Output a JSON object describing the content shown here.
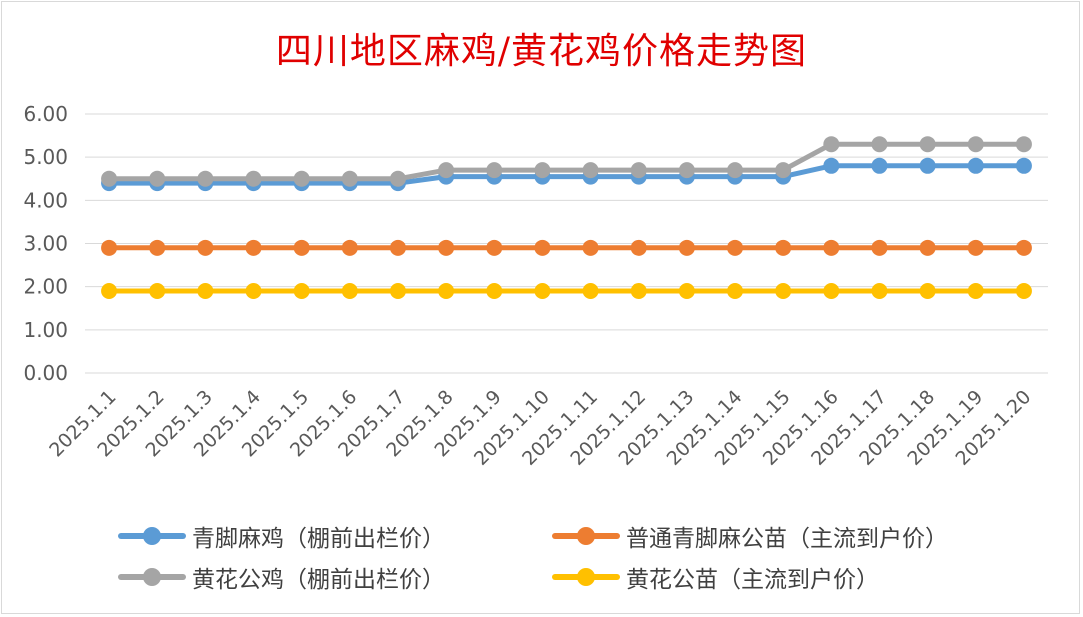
{
  "chart_data": {
    "type": "line",
    "title": "四川地区麻鸡/黄花鸡价格走势图",
    "categories": [
      "2025.1.1",
      "2025.1.2",
      "2025.1.3",
      "2025.1.4",
      "2025.1.5",
      "2025.1.6",
      "2025.1.7",
      "2025.1.8",
      "2025.1.9",
      "2025.1.10",
      "2025.1.11",
      "2025.1.12",
      "2025.1.13",
      "2025.1.14",
      "2025.1.15",
      "2025.1.16",
      "2025.1.17",
      "2025.1.18",
      "2025.1.19",
      "2025.1.20"
    ],
    "ylim": [
      0,
      6
    ],
    "yticks": [
      "0.00",
      "1.00",
      "2.00",
      "3.00",
      "4.00",
      "5.00",
      "6.00"
    ],
    "grid": true,
    "legend_position": "bottom",
    "series": [
      {
        "name": "黄花公苗（主流到户价）",
        "color": "#ffc000",
        "values": [
          1.9,
          1.9,
          1.9,
          1.9,
          1.9,
          1.9,
          1.9,
          1.9,
          1.9,
          1.9,
          1.9,
          1.9,
          1.9,
          1.9,
          1.9,
          1.9,
          1.9,
          1.9,
          1.9,
          1.9
        ]
      },
      {
        "name": "普通青脚麻公苗（主流到户价）",
        "color": "#ed7d31",
        "values": [
          2.9,
          2.9,
          2.9,
          2.9,
          2.9,
          2.9,
          2.9,
          2.9,
          2.9,
          2.9,
          2.9,
          2.9,
          2.9,
          2.9,
          2.9,
          2.9,
          2.9,
          2.9,
          2.9,
          2.9
        ]
      },
      {
        "name": "青脚麻鸡（棚前出栏价）",
        "color": "#5b9bd5",
        "values": [
          4.4,
          4.4,
          4.4,
          4.4,
          4.4,
          4.4,
          4.4,
          4.55,
          4.55,
          4.55,
          4.55,
          4.55,
          4.55,
          4.55,
          4.55,
          4.8,
          4.8,
          4.8,
          4.8,
          4.8
        ]
      },
      {
        "name": "黄花公鸡（棚前出栏价）",
        "color": "#a5a5a5",
        "values": [
          4.5,
          4.5,
          4.5,
          4.5,
          4.5,
          4.5,
          4.5,
          4.7,
          4.7,
          4.7,
          4.7,
          4.7,
          4.7,
          4.7,
          4.7,
          5.3,
          5.3,
          5.3,
          5.3,
          5.3
        ]
      }
    ]
  },
  "legend": {
    "item1": "青脚麻鸡（棚前出栏价）",
    "item2": "普通青脚麻公苗（主流到户价）",
    "item3": "黄花公鸡（棚前出栏价）",
    "item4": "黄花公苗（主流到户价）"
  },
  "colors": {
    "title": "#e00000",
    "grid": "#d9d9d9",
    "tick_text": "#595959"
  }
}
